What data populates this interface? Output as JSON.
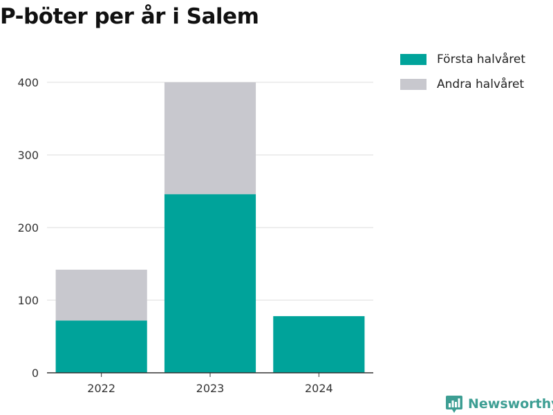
{
  "title": "P-böter per år i Salem",
  "brand": {
    "name": "Newsworthy",
    "icon": "newsworthy-chart-logo-icon"
  },
  "colors": {
    "first_half": "#00a39a",
    "second_half": "#c8c8ce",
    "brand": "#3d9e93",
    "grid": "#dddddd",
    "axis": "#333333"
  },
  "legend": [
    {
      "label": "Första halvåret",
      "color": "#00a39a"
    },
    {
      "label": "Andra halvåret",
      "color": "#c8c8ce"
    }
  ],
  "chart_data": {
    "type": "bar",
    "stacked": true,
    "title": "P-böter per år i Salem",
    "xlabel": "",
    "ylabel": "",
    "categories": [
      "2022",
      "2023",
      "2024"
    ],
    "series": [
      {
        "name": "Första halvåret",
        "values": [
          72,
          246,
          78
        ]
      },
      {
        "name": "Andra halvåret",
        "values": [
          70,
          154,
          0
        ]
      }
    ],
    "ylim": [
      0,
      400
    ],
    "yticks": [
      0,
      100,
      200,
      300,
      400
    ],
    "grid": true,
    "legend_position": "top-right"
  }
}
